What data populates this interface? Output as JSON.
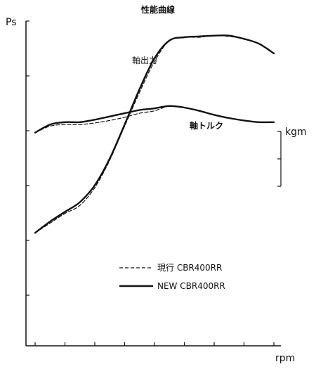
{
  "chart_data": {
    "type": "line",
    "title": "性能曲線",
    "xlabel": "rpm",
    "ylabel_left": "Ps",
    "ylabel_right": "kgm",
    "grid": false,
    "curve_labels": {
      "power": "軸出力",
      "torque": "軸トルク"
    },
    "series": [
      {
        "name": "現行 CBR400RR",
        "style": "dashed",
        "power": [
          [
            0.0,
            6.9
          ],
          [
            0.5,
            7.5
          ],
          [
            1.0,
            8.1
          ],
          [
            1.5,
            8.6
          ],
          [
            2.0,
            9.7
          ],
          [
            2.5,
            11.4
          ],
          [
            3.0,
            13.5
          ],
          [
            3.5,
            15.6
          ],
          [
            4.0,
            17.5
          ],
          [
            4.5,
            18.8
          ],
          [
            5.0,
            19.0
          ],
          [
            5.5,
            19.0
          ],
          [
            6.0,
            19.1
          ],
          [
            6.5,
            19.05
          ],
          [
            7.0,
            18.9
          ],
          [
            7.5,
            18.6
          ],
          [
            8.0,
            18.0
          ]
        ],
        "torque": [
          [
            0.0,
            13.1
          ],
          [
            0.5,
            13.5
          ],
          [
            1.0,
            13.6
          ],
          [
            1.5,
            13.6
          ],
          [
            2.0,
            13.7
          ],
          [
            2.5,
            13.85
          ],
          [
            3.0,
            14.05
          ],
          [
            3.5,
            14.3
          ],
          [
            4.0,
            14.45
          ],
          [
            4.5,
            14.75
          ],
          [
            5.0,
            14.65
          ],
          [
            5.5,
            14.45
          ],
          [
            6.0,
            14.2
          ],
          [
            6.5,
            14.0
          ],
          [
            7.0,
            13.85
          ],
          [
            7.5,
            13.75
          ],
          [
            8.0,
            13.75
          ]
        ]
      },
      {
        "name": "NEW CBR400RR",
        "style": "solid",
        "power": [
          [
            0.0,
            6.9
          ],
          [
            0.5,
            7.6
          ],
          [
            1.0,
            8.2
          ],
          [
            1.5,
            8.8
          ],
          [
            2.0,
            9.85
          ],
          [
            2.5,
            11.5
          ],
          [
            3.0,
            13.6
          ],
          [
            3.5,
            15.8
          ],
          [
            4.0,
            17.7
          ],
          [
            4.5,
            18.8
          ],
          [
            5.0,
            19.0
          ],
          [
            5.5,
            19.05
          ],
          [
            6.0,
            19.1
          ],
          [
            6.5,
            19.1
          ],
          [
            7.0,
            18.9
          ],
          [
            7.5,
            18.6
          ],
          [
            8.0,
            18.0
          ]
        ],
        "torque": [
          [
            0.0,
            13.1
          ],
          [
            0.5,
            13.6
          ],
          [
            1.0,
            13.75
          ],
          [
            1.5,
            13.75
          ],
          [
            2.0,
            13.9
          ],
          [
            2.5,
            14.1
          ],
          [
            3.0,
            14.3
          ],
          [
            3.5,
            14.5
          ],
          [
            4.0,
            14.6
          ],
          [
            4.5,
            14.75
          ],
          [
            5.0,
            14.65
          ],
          [
            5.5,
            14.45
          ],
          [
            6.0,
            14.2
          ],
          [
            6.5,
            14.0
          ],
          [
            7.0,
            13.85
          ],
          [
            7.5,
            13.75
          ],
          [
            8.0,
            13.75
          ]
        ]
      }
    ]
  }
}
